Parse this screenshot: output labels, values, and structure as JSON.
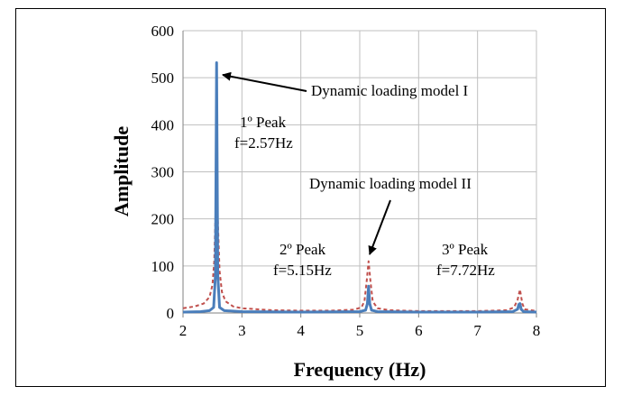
{
  "chart_data": {
    "type": "line",
    "xlabel": "Frequency (Hz)",
    "ylabel": "Amplitude",
    "xlim": [
      2,
      8
    ],
    "ylim": [
      0,
      600
    ],
    "x_ticks": [
      "2",
      "3",
      "4",
      "5",
      "6",
      "7",
      "8"
    ],
    "y_ticks": [
      "0",
      "100",
      "200",
      "300",
      "400",
      "500",
      "600"
    ],
    "grid": true,
    "series": [
      {
        "color": "#4a7ebb",
        "style": "solid",
        "x": [
          2.0,
          2.3,
          2.45,
          2.52,
          2.55,
          2.57,
          2.59,
          2.62,
          2.7,
          3.0,
          4.0,
          5.0,
          5.1,
          5.13,
          5.15,
          5.17,
          5.2,
          5.3,
          6.0,
          7.0,
          7.6,
          7.68,
          7.7,
          7.72,
          7.74,
          7.78,
          8.0
        ],
        "y": [
          2,
          3,
          5,
          12,
          80,
          532,
          80,
          12,
          5,
          3,
          2,
          3,
          6,
          20,
          57,
          20,
          6,
          3,
          2,
          2,
          3,
          8,
          18,
          20,
          8,
          3,
          2
        ]
      },
      {
        "color": "#c0504d",
        "style": "dashed",
        "x": [
          2.0,
          2.2,
          2.35,
          2.45,
          2.5,
          2.53,
          2.55,
          2.57,
          2.59,
          2.62,
          2.66,
          2.72,
          2.85,
          3.0,
          3.5,
          4.0,
          4.5,
          4.9,
          5.03,
          5.08,
          5.12,
          5.15,
          5.18,
          5.22,
          5.3,
          5.5,
          6.0,
          6.5,
          7.0,
          7.5,
          7.62,
          7.68,
          7.72,
          7.76,
          7.8,
          8.0
        ],
        "y": [
          10,
          14,
          20,
          34,
          60,
          110,
          200,
          385,
          200,
          90,
          45,
          25,
          14,
          10,
          6,
          5,
          5,
          7,
          12,
          25,
          70,
          110,
          70,
          25,
          10,
          6,
          4,
          4,
          4,
          6,
          12,
          28,
          50,
          20,
          8,
          4
        ]
      }
    ],
    "annotations": [
      {
        "lines": [
          "Dynamic loading model I"
        ]
      },
      {
        "lines": [
          "Dynamic loading model II"
        ]
      },
      {
        "lines": [
          "1º Peak",
          "f=2.57Hz"
        ]
      },
      {
        "lines": [
          "2º Peak",
          "f=5.15Hz"
        ]
      },
      {
        "lines": [
          "3º Peak",
          "f=7.72Hz"
        ]
      }
    ]
  }
}
